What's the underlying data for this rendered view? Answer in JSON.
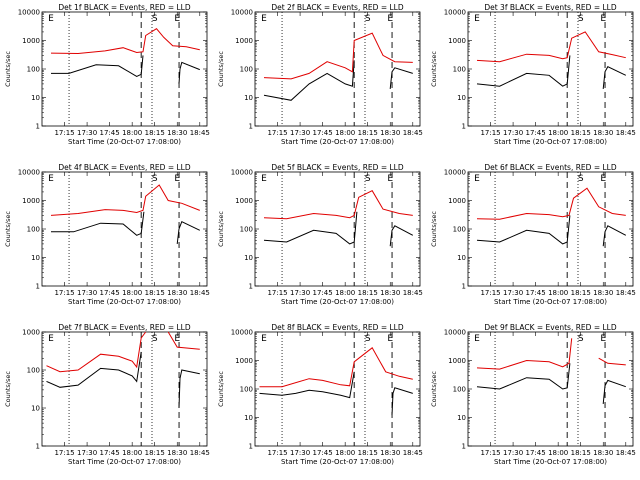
{
  "chart_data": [
    {
      "type": "line",
      "title": "Det 1f BLACK = Events, RED = LLD",
      "xlabel": "Start Time (20-Oct-07 17:08:00)",
      "ylabel": "Counts/sec",
      "yscale": "log",
      "ylim": [
        1,
        10000
      ],
      "xticks": [
        "17:15",
        "17:30",
        "17:45",
        "18:00",
        "18:15",
        "18:30",
        "18:45"
      ],
      "yticks": [
        "1",
        "10",
        "100",
        "1000",
        "10000"
      ],
      "markers": [
        "E",
        "S",
        "E"
      ],
      "red": [
        [
          17.1,
          360
        ],
        [
          17.4,
          350
        ],
        [
          17.7,
          430
        ],
        [
          17.9,
          560
        ],
        [
          18.05,
          380
        ],
        [
          18.12,
          400
        ],
        [
          18.15,
          1500
        ],
        [
          18.27,
          2600
        ],
        [
          18.35,
          1300
        ],
        [
          18.45,
          650
        ],
        [
          18.6,
          600
        ],
        [
          18.75,
          470
        ]
      ],
      "black": [
        [
          17.1,
          70
        ],
        [
          17.3,
          70
        ],
        [
          17.6,
          140
        ],
        [
          17.85,
          130
        ],
        [
          18.05,
          55
        ],
        [
          18.1,
          65
        ],
        [
          18.12,
          300
        ],
        [
          18.22,
          null
        ],
        [
          18.52,
          30
        ],
        [
          18.53,
          100
        ],
        [
          18.55,
          170
        ],
        [
          18.75,
          95
        ]
      ]
    },
    {
      "type": "line",
      "title": "Det 2f BLACK = Events, RED = LLD",
      "xlabel": "Start Time (20-Oct-07 17:08:00)",
      "ylabel": "Counts/sec",
      "yscale": "log",
      "ylim": [
        1,
        10000
      ],
      "xticks": [
        "17:15",
        "17:30",
        "17:45",
        "18:00",
        "18:15",
        "18:30",
        "18:45"
      ],
      "yticks": [
        "1",
        "10",
        "100",
        "1000",
        "10000"
      ],
      "markers": [
        "E",
        "S",
        "E"
      ],
      "red": [
        [
          17.1,
          50
        ],
        [
          17.4,
          45
        ],
        [
          17.6,
          70
        ],
        [
          17.8,
          180
        ],
        [
          18.0,
          110
        ],
        [
          18.08,
          80
        ],
        [
          18.1,
          1000
        ],
        [
          18.3,
          1800
        ],
        [
          18.42,
          300
        ],
        [
          18.55,
          180
        ],
        [
          18.75,
          170
        ]
      ],
      "black": [
        [
          17.1,
          12
        ],
        [
          17.4,
          8
        ],
        [
          17.6,
          30
        ],
        [
          17.8,
          70
        ],
        [
          18.0,
          30
        ],
        [
          18.08,
          25
        ],
        [
          18.1,
          200
        ],
        [
          18.22,
          null
        ],
        [
          18.5,
          20
        ],
        [
          18.52,
          80
        ],
        [
          18.55,
          110
        ],
        [
          18.75,
          70
        ]
      ]
    },
    {
      "type": "line",
      "title": "Det 3f BLACK = Events, RED = LLD",
      "xlabel": "Start Time (20-Oct-07 17:08:00)",
      "ylabel": "Counts/sec",
      "yscale": "log",
      "ylim": [
        1,
        10000
      ],
      "xticks": [
        "17:15",
        "17:30",
        "17:45",
        "18:00",
        "18:15",
        "18:30",
        "18:45"
      ],
      "yticks": [
        "1",
        "10",
        "100",
        "1000",
        "10000"
      ],
      "markers": [
        "E",
        "S",
        "E"
      ],
      "red": [
        [
          17.1,
          200
        ],
        [
          17.35,
          180
        ],
        [
          17.65,
          330
        ],
        [
          17.9,
          300
        ],
        [
          18.05,
          230
        ],
        [
          18.1,
          250
        ],
        [
          18.15,
          1200
        ],
        [
          18.3,
          2000
        ],
        [
          18.45,
          400
        ],
        [
          18.6,
          320
        ],
        [
          18.75,
          250
        ]
      ],
      "black": [
        [
          17.1,
          30
        ],
        [
          17.35,
          25
        ],
        [
          17.65,
          70
        ],
        [
          17.9,
          60
        ],
        [
          18.05,
          25
        ],
        [
          18.1,
          30
        ],
        [
          18.13,
          300
        ],
        [
          18.22,
          null
        ],
        [
          18.5,
          20
        ],
        [
          18.52,
          80
        ],
        [
          18.55,
          120
        ],
        [
          18.75,
          60
        ]
      ]
    },
    {
      "type": "line",
      "title": "Det 4f BLACK = Events, RED = LLD",
      "xlabel": "Start Time (20-Oct-07 17:08:00)",
      "ylabel": "Counts/sec",
      "yscale": "log",
      "ylim": [
        1,
        10000
      ],
      "xticks": [
        "17:15",
        "17:30",
        "17:45",
        "18:00",
        "18:15",
        "18:30",
        "18:45"
      ],
      "yticks": [
        "1",
        "10",
        "100",
        "1000",
        "10000"
      ],
      "markers": [
        "E",
        "S",
        "E"
      ],
      "red": [
        [
          17.1,
          300
        ],
        [
          17.4,
          350
        ],
        [
          17.7,
          480
        ],
        [
          17.9,
          450
        ],
        [
          18.05,
          380
        ],
        [
          18.12,
          450
        ],
        [
          18.15,
          1400
        ],
        [
          18.3,
          3500
        ],
        [
          18.4,
          1000
        ],
        [
          18.55,
          800
        ],
        [
          18.75,
          450
        ]
      ],
      "black": [
        [
          17.1,
          80
        ],
        [
          17.35,
          80
        ],
        [
          17.65,
          160
        ],
        [
          17.9,
          150
        ],
        [
          18.05,
          60
        ],
        [
          18.1,
          70
        ],
        [
          18.13,
          400
        ],
        [
          18.22,
          null
        ],
        [
          18.5,
          30
        ],
        [
          18.52,
          100
        ],
        [
          18.55,
          180
        ],
        [
          18.75,
          90
        ]
      ]
    },
    {
      "type": "line",
      "title": "Det 5f BLACK = Events, RED = LLD",
      "xlabel": "Start Time (20-Oct-07 17:08:00)",
      "ylabel": "Counts/sec",
      "yscale": "log",
      "ylim": [
        1,
        10000
      ],
      "xticks": [
        "17:15",
        "17:30",
        "17:45",
        "18:00",
        "18:15",
        "18:30",
        "18:45"
      ],
      "yticks": [
        "1",
        "10",
        "100",
        "1000",
        "10000"
      ],
      "markers": [
        "E",
        "S",
        "E"
      ],
      "red": [
        [
          17.1,
          250
        ],
        [
          17.35,
          230
        ],
        [
          17.65,
          350
        ],
        [
          17.9,
          300
        ],
        [
          18.05,
          250
        ],
        [
          18.1,
          300
        ],
        [
          18.15,
          1300
        ],
        [
          18.3,
          2200
        ],
        [
          18.42,
          500
        ],
        [
          18.6,
          350
        ],
        [
          18.75,
          300
        ]
      ],
      "black": [
        [
          17.1,
          40
        ],
        [
          17.35,
          35
        ],
        [
          17.65,
          90
        ],
        [
          17.9,
          70
        ],
        [
          18.05,
          30
        ],
        [
          18.1,
          35
        ],
        [
          18.13,
          400
        ],
        [
          18.22,
          null
        ],
        [
          18.5,
          25
        ],
        [
          18.52,
          90
        ],
        [
          18.55,
          130
        ],
        [
          18.75,
          60
        ]
      ]
    },
    {
      "type": "line",
      "title": "Det 6f BLACK = Events, RED = LLD",
      "xlabel": "Start Time (20-Oct-07 17:08:00)",
      "ylabel": "Counts/sec",
      "yscale": "log",
      "ylim": [
        1,
        10000
      ],
      "xticks": [
        "17:15",
        "17:30",
        "17:45",
        "18:00",
        "18:15",
        "18:30",
        "18:45"
      ],
      "yticks": [
        "1",
        "10",
        "100",
        "1000",
        "10000"
      ],
      "markers": [
        "E",
        "S",
        "E"
      ],
      "red": [
        [
          17.1,
          230
        ],
        [
          17.35,
          220
        ],
        [
          17.65,
          350
        ],
        [
          17.9,
          320
        ],
        [
          18.05,
          270
        ],
        [
          18.12,
          300
        ],
        [
          18.17,
          1200
        ],
        [
          18.32,
          2700
        ],
        [
          18.45,
          600
        ],
        [
          18.6,
          350
        ],
        [
          18.75,
          300
        ]
      ],
      "black": [
        [
          17.1,
          40
        ],
        [
          17.35,
          35
        ],
        [
          17.65,
          90
        ],
        [
          17.9,
          70
        ],
        [
          18.05,
          30
        ],
        [
          18.1,
          35
        ],
        [
          18.13,
          300
        ],
        [
          18.22,
          null
        ],
        [
          18.5,
          25
        ],
        [
          18.52,
          80
        ],
        [
          18.55,
          130
        ],
        [
          18.75,
          60
        ]
      ]
    },
    {
      "type": "line",
      "title": "Det 7f BLACK = Events, RED = LLD",
      "xlabel": "Start Time (20-Oct-07 17:08:00)",
      "ylabel": "Counts/sec",
      "yscale": "log",
      "ylim": [
        1,
        1000
      ],
      "xticks": [
        "17:15",
        "17:30",
        "17:45",
        "18:00",
        "18:15",
        "18:30",
        "18:45"
      ],
      "yticks": [
        "1",
        "10",
        "100",
        "1000"
      ],
      "markers": [
        "E",
        "S",
        "E"
      ],
      "red": [
        [
          17.05,
          130
        ],
        [
          17.2,
          90
        ],
        [
          17.4,
          100
        ],
        [
          17.65,
          260
        ],
        [
          17.85,
          230
        ],
        [
          18.0,
          170
        ],
        [
          18.05,
          120
        ],
        [
          18.1,
          700
        ],
        [
          18.15,
          1000
        ],
        [
          18.22,
          null
        ],
        [
          18.4,
          1000
        ],
        [
          18.5,
          400
        ],
        [
          18.75,
          350
        ]
      ],
      "black": [
        [
          17.05,
          50
        ],
        [
          17.2,
          35
        ],
        [
          17.4,
          40
        ],
        [
          17.65,
          110
        ],
        [
          17.85,
          100
        ],
        [
          18.0,
          70
        ],
        [
          18.05,
          50
        ],
        [
          18.1,
          300
        ],
        [
          18.22,
          null
        ],
        [
          18.52,
          10
        ],
        [
          18.53,
          60
        ],
        [
          18.55,
          100
        ],
        [
          18.75,
          80
        ]
      ]
    },
    {
      "type": "line",
      "title": "Det 8f BLACK = Events, RED = LLD",
      "xlabel": "Start Time (20-Oct-07 17:08:00)",
      "ylabel": "Counts/sec",
      "yscale": "log",
      "ylim": [
        1,
        10000
      ],
      "xticks": [
        "17:15",
        "17:30",
        "17:45",
        "18:00",
        "18:15",
        "18:30",
        "18:45"
      ],
      "yticks": [
        "1",
        "10",
        "100",
        "1000",
        "10000"
      ],
      "markers": [
        "E",
        "S",
        "E"
      ],
      "red": [
        [
          17.05,
          120
        ],
        [
          17.3,
          120
        ],
        [
          17.6,
          230
        ],
        [
          17.75,
          200
        ],
        [
          17.95,
          140
        ],
        [
          18.05,
          130
        ],
        [
          18.1,
          900
        ],
        [
          18.3,
          2800
        ],
        [
          18.45,
          400
        ],
        [
          18.6,
          280
        ],
        [
          18.75,
          220
        ]
      ],
      "black": [
        [
          17.05,
          70
        ],
        [
          17.3,
          60
        ],
        [
          17.45,
          70
        ],
        [
          17.6,
          90
        ],
        [
          17.75,
          80
        ],
        [
          17.95,
          60
        ],
        [
          18.05,
          50
        ],
        [
          18.1,
          400
        ],
        [
          18.22,
          null
        ],
        [
          18.52,
          12
        ],
        [
          18.53,
          70
        ],
        [
          18.55,
          110
        ],
        [
          18.75,
          70
        ]
      ]
    },
    {
      "type": "line",
      "title": "Det 9f BLACK = Events, RED = LLD",
      "xlabel": "Start Time (20-Oct-07 17:08:00)",
      "ylabel": "Counts/sec",
      "yscale": "log",
      "ylim": [
        1,
        10000
      ],
      "xticks": [
        "17:15",
        "17:30",
        "17:45",
        "18:00",
        "18:15",
        "18:30",
        "18:45"
      ],
      "yticks": [
        "1",
        "10",
        "100",
        "1000",
        "10000"
      ],
      "markers": [
        "E",
        "S",
        "E"
      ],
      "red": [
        [
          17.1,
          550
        ],
        [
          17.35,
          500
        ],
        [
          17.65,
          1000
        ],
        [
          17.9,
          900
        ],
        [
          18.05,
          600
        ],
        [
          18.12,
          800
        ],
        [
          18.15,
          6000
        ],
        [
          18.22,
          null
        ],
        [
          18.45,
          1200
        ],
        [
          18.55,
          800
        ],
        [
          18.75,
          700
        ]
      ],
      "black": [
        [
          17.1,
          120
        ],
        [
          17.35,
          100
        ],
        [
          17.65,
          250
        ],
        [
          17.9,
          220
        ],
        [
          18.05,
          100
        ],
        [
          18.1,
          110
        ],
        [
          18.13,
          800
        ],
        [
          18.22,
          null
        ],
        [
          18.5,
          30
        ],
        [
          18.52,
          130
        ],
        [
          18.55,
          200
        ],
        [
          18.75,
          120
        ]
      ]
    }
  ],
  "colors": {
    "events": "#000000",
    "lld": "#e00000"
  }
}
